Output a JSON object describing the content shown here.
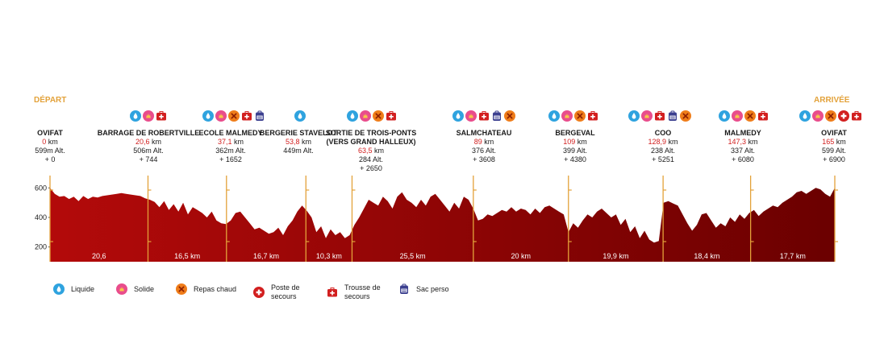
{
  "start_label": "DÉPART",
  "end_label": "ARRIVÉE",
  "colors": {
    "profile_dark": "#6b0000",
    "profile_light": "#b30a0a",
    "marker": "#e3a23a",
    "km_red": "#d21f1f"
  },
  "stations": [
    {
      "name": "OVIFAT",
      "km": "0",
      "km_unit": "km",
      "alt": "599m Alt.",
      "gain": "+ 0",
      "icons": []
    },
    {
      "name": "BARRAGE DE ROBERTVILLE",
      "km": "20,6",
      "km_unit": "km",
      "alt": "506m Alt.",
      "gain": "+ 744",
      "icons": [
        "liquide",
        "solide",
        "trousse"
      ]
    },
    {
      "name": "ECOLE MALMEDY",
      "km": "37,1",
      "km_unit": "km",
      "alt": "362m Alt.",
      "gain": "+ 1652",
      "icons": [
        "liquide",
        "solide",
        "repas",
        "trousse",
        "sac"
      ]
    },
    {
      "name": "BERGERIE STAVELOT",
      "km": "53,8",
      "km_unit": "km",
      "alt": "449m Alt.",
      "gain": "",
      "icons": [
        "liquide"
      ]
    },
    {
      "name": "SORTIE DE TROIS-PONTS (VERS GRAND HALLEUX)",
      "km": "63,5",
      "km_unit": "km",
      "alt": "284 Alt.",
      "gain": "+ 2650",
      "icons": [
        "liquide",
        "solide",
        "repas",
        "trousse"
      ]
    },
    {
      "name": "SALMCHATEAU",
      "km": "89",
      "km_unit": "km",
      "alt": "376 Alt.",
      "gain": "+ 3608",
      "icons": [
        "liquide",
        "solide",
        "trousse",
        "sac",
        "repas"
      ]
    },
    {
      "name": "BERGEVAL",
      "km": "109",
      "km_unit": "km",
      "alt": "399 Alt.",
      "gain": "+ 4380",
      "icons": [
        "liquide",
        "solide",
        "repas",
        "trousse"
      ]
    },
    {
      "name": "COO",
      "km": "128,9",
      "km_unit": "km",
      "alt": "238 Alt.",
      "gain": "+ 5251",
      "icons": [
        "liquide",
        "solide",
        "trousse",
        "sac",
        "repas"
      ]
    },
    {
      "name": "MALMEDY",
      "km": "147,3",
      "km_unit": "km",
      "alt": "337 Alt.",
      "gain": "+ 6080",
      "icons": [
        "liquide",
        "solide",
        "repas",
        "trousse"
      ]
    },
    {
      "name": "OVIFAT",
      "km": "165",
      "km_unit": "km",
      "alt": "599 Alt.",
      "gain": "+ 6900",
      "icons": [
        "liquide",
        "solide",
        "repas",
        "poste",
        "trousse"
      ]
    }
  ],
  "legend": [
    {
      "key": "liquide",
      "label": "Liquide"
    },
    {
      "key": "solide",
      "label": "Solide"
    },
    {
      "key": "repas",
      "label": "Repas chaud"
    },
    {
      "key": "poste",
      "label": "Poste de secours"
    },
    {
      "key": "trousse",
      "label": "Trousse de secours"
    },
    {
      "key": "sac",
      "label": "Sac perso"
    }
  ],
  "chart_data": {
    "type": "area",
    "xlabel": "",
    "ylabel": "",
    "x_unit": "km",
    "xlim": [
      0,
      165
    ],
    "ylim": [
      100,
      700
    ],
    "y_ticks": [
      "200",
      "400",
      "600"
    ],
    "checkpoints_km": [
      0,
      20.6,
      37.1,
      53.8,
      63.5,
      89,
      109,
      128.9,
      147.3,
      165
    ],
    "segments": [
      "20,6",
      "16,5 km",
      "16,7 km",
      "10,3 km",
      "25,5 km",
      "20 km",
      "19,9 km",
      "18,4 km",
      "17,7 km"
    ],
    "series": [
      {
        "x": [
          0,
          1,
          2,
          3,
          4,
          5,
          6,
          7,
          8,
          9,
          10,
          11,
          12,
          13,
          14,
          15,
          16,
          17,
          18,
          19,
          20,
          21,
          22,
          23,
          24,
          25,
          26,
          27,
          28,
          29,
          30,
          31,
          32,
          33,
          34,
          35,
          36,
          37,
          38,
          39,
          40,
          41,
          42,
          43,
          44,
          45,
          46,
          47,
          48,
          49,
          50,
          51,
          52,
          53,
          54,
          55,
          56,
          57,
          58,
          59,
          60,
          61,
          62,
          63,
          64,
          65,
          66,
          67,
          68,
          69,
          70,
          71,
          72,
          73,
          74,
          75,
          76,
          77,
          78,
          79,
          80,
          81,
          82,
          83,
          84,
          85,
          86,
          87,
          88,
          89,
          90,
          91,
          92,
          93,
          94,
          95,
          96,
          97,
          98,
          99,
          100,
          101,
          102,
          103,
          104,
          105,
          106,
          107,
          108,
          109,
          110,
          111,
          112,
          113,
          114,
          115,
          116,
          117,
          118,
          119,
          120,
          121,
          122,
          123,
          124,
          125,
          126,
          127,
          128,
          129,
          130,
          131,
          132,
          133,
          134,
          135,
          136,
          137,
          138,
          139,
          140,
          141,
          142,
          143,
          144,
          145,
          146,
          147,
          148,
          149,
          150,
          151,
          152,
          153,
          154,
          155,
          156,
          157,
          158,
          159,
          160,
          161,
          162,
          163,
          164,
          165
        ],
        "y": [
          600,
          560,
          540,
          545,
          525,
          540,
          510,
          545,
          525,
          540,
          535,
          545,
          550,
          555,
          560,
          565,
          560,
          555,
          550,
          545,
          530,
          520,
          505,
          470,
          510,
          450,
          490,
          440,
          500,
          420,
          470,
          450,
          430,
          400,
          440,
          380,
          360,
          355,
          380,
          430,
          440,
          400,
          360,
          320,
          330,
          310,
          290,
          300,
          330,
          280,
          340,
          380,
          440,
          480,
          445,
          400,
          300,
          340,
          260,
          320,
          280,
          300,
          260,
          280,
          350,
          400,
          460,
          520,
          500,
          480,
          540,
          510,
          460,
          540,
          570,
          520,
          500,
          470,
          520,
          480,
          540,
          560,
          520,
          480,
          440,
          500,
          460,
          540,
          520,
          460,
          380,
          390,
          420,
          410,
          430,
          450,
          440,
          470,
          440,
          460,
          450,
          420,
          460,
          430,
          470,
          480,
          460,
          440,
          420,
          300,
          360,
          330,
          380,
          420,
          400,
          440,
          460,
          430,
          400,
          420,
          350,
          390,
          300,
          340,
          260,
          310,
          250,
          230,
          240,
          500,
          510,
          495,
          480,
          420,
          360,
          310,
          350,
          420,
          430,
          380,
          330,
          360,
          340,
          400,
          370,
          420,
          390,
          430,
          450,
          410,
          440,
          460,
          480,
          470,
          500,
          520,
          540,
          570,
          580,
          560,
          580,
          600,
          590,
          560,
          540,
          600
        ]
      }
    ]
  }
}
